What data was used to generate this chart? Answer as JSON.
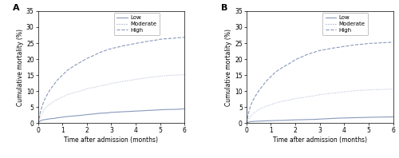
{
  "panel_A": {
    "label": "A",
    "low": {
      "x": [
        0,
        0.05,
        0.08,
        0.12,
        0.18,
        0.25,
        0.35,
        0.5,
        0.65,
        0.8,
        1.0,
        1.2,
        1.5,
        1.8,
        2.0,
        2.3,
        2.5,
        2.8,
        3.0,
        3.3,
        3.5,
        3.8,
        4.0,
        4.3,
        4.5,
        4.8,
        5.0,
        5.3,
        5.5,
        5.8,
        6.0
      ],
      "y": [
        0,
        0.4,
        0.6,
        0.8,
        1.0,
        1.1,
        1.2,
        1.4,
        1.5,
        1.7,
        1.9,
        2.1,
        2.3,
        2.5,
        2.7,
        2.9,
        3.1,
        3.2,
        3.4,
        3.5,
        3.6,
        3.7,
        3.8,
        3.9,
        4.0,
        4.1,
        4.2,
        4.3,
        4.3,
        4.4,
        4.5
      ]
    },
    "moderate": {
      "x": [
        0,
        0.05,
        0.08,
        0.12,
        0.18,
        0.25,
        0.35,
        0.5,
        0.65,
        0.8,
        1.0,
        1.2,
        1.5,
        1.8,
        2.0,
        2.3,
        2.5,
        2.8,
        3.0,
        3.3,
        3.5,
        3.8,
        4.0,
        4.3,
        4.5,
        4.8,
        5.0,
        5.3,
        5.5,
        5.8,
        6.0
      ],
      "y": [
        0,
        0.8,
        1.5,
        2.3,
        3.2,
        4.2,
        5.2,
        6.0,
        6.8,
        7.5,
        8.2,
        8.9,
        9.6,
        10.2,
        10.8,
        11.2,
        11.6,
        12.0,
        12.4,
        12.8,
        13.1,
        13.4,
        13.7,
        14.0,
        14.2,
        14.5,
        14.7,
        14.9,
        15.0,
        15.1,
        15.2
      ]
    },
    "high": {
      "x": [
        0,
        0.05,
        0.08,
        0.12,
        0.18,
        0.25,
        0.35,
        0.5,
        0.65,
        0.8,
        1.0,
        1.2,
        1.5,
        1.8,
        2.0,
        2.3,
        2.5,
        2.8,
        3.0,
        3.3,
        3.5,
        3.8,
        4.0,
        4.3,
        4.5,
        4.8,
        5.0,
        5.3,
        5.5,
        5.8,
        6.0
      ],
      "y": [
        0,
        1.5,
        2.8,
        4.0,
        5.5,
        7.0,
        8.5,
        10.5,
        12.0,
        13.5,
        15.0,
        16.5,
        18.0,
        19.3,
        20.2,
        21.2,
        22.0,
        22.8,
        23.3,
        23.8,
        24.2,
        24.6,
        24.9,
        25.3,
        25.6,
        25.9,
        26.2,
        26.4,
        26.5,
        26.7,
        26.8
      ]
    }
  },
  "panel_B": {
    "label": "B",
    "low": {
      "x": [
        0,
        0.05,
        0.08,
        0.12,
        0.18,
        0.25,
        0.35,
        0.5,
        0.65,
        0.8,
        1.0,
        1.2,
        1.5,
        1.8,
        2.0,
        2.3,
        2.5,
        2.8,
        3.0,
        3.3,
        3.5,
        3.8,
        4.0,
        4.3,
        4.5,
        4.8,
        5.0,
        5.3,
        5.5,
        5.8,
        6.0
      ],
      "y": [
        0,
        0.2,
        0.3,
        0.4,
        0.5,
        0.55,
        0.6,
        0.65,
        0.7,
        0.75,
        0.8,
        0.85,
        0.9,
        1.0,
        1.05,
        1.1,
        1.15,
        1.2,
        1.3,
        1.4,
        1.5,
        1.6,
        1.65,
        1.7,
        1.75,
        1.8,
        1.85,
        1.9,
        1.92,
        1.95,
        2.0
      ]
    },
    "moderate": {
      "x": [
        0,
        0.05,
        0.08,
        0.12,
        0.18,
        0.25,
        0.35,
        0.5,
        0.65,
        0.8,
        1.0,
        1.2,
        1.5,
        1.8,
        2.0,
        2.3,
        2.5,
        2.8,
        3.0,
        3.3,
        3.5,
        3.8,
        4.0,
        4.3,
        4.5,
        4.8,
        5.0,
        5.3,
        5.5,
        5.8,
        6.0
      ],
      "y": [
        0,
        0.5,
        1.0,
        1.6,
        2.2,
        2.8,
        3.5,
        4.2,
        4.8,
        5.3,
        5.8,
        6.3,
        6.9,
        7.3,
        7.7,
        8.0,
        8.3,
        8.6,
        8.9,
        9.2,
        9.4,
        9.6,
        9.8,
        10.0,
        10.2,
        10.3,
        10.4,
        10.5,
        10.55,
        10.6,
        10.7
      ]
    },
    "high": {
      "x": [
        0,
        0.05,
        0.08,
        0.12,
        0.18,
        0.25,
        0.35,
        0.5,
        0.65,
        0.8,
        1.0,
        1.2,
        1.5,
        1.8,
        2.0,
        2.3,
        2.5,
        2.8,
        3.0,
        3.3,
        3.5,
        3.8,
        4.0,
        4.3,
        4.5,
        4.8,
        5.0,
        5.3,
        5.5,
        5.8,
        6.0
      ],
      "y": [
        0,
        1.5,
        2.8,
        4.0,
        5.5,
        6.8,
        8.2,
        10.0,
        11.5,
        13.0,
        14.5,
        16.0,
        17.5,
        18.8,
        19.8,
        20.8,
        21.5,
        22.2,
        22.7,
        23.1,
        23.4,
        23.7,
        24.0,
        24.3,
        24.5,
        24.7,
        24.9,
        25.0,
        25.1,
        25.2,
        25.3
      ]
    }
  },
  "line_color": "#8899bb",
  "xlim": [
    0,
    6
  ],
  "ylim": [
    0,
    35
  ],
  "yticks": [
    0,
    5,
    10,
    15,
    20,
    25,
    30,
    35
  ],
  "xticks": [
    0,
    1,
    2,
    3,
    4,
    5,
    6
  ],
  "xlabel": "Time after admission (months)",
  "ylabel": "Cumulative mortality (%)",
  "legend_labels": [
    "Low",
    "Moderate",
    "High"
  ],
  "bg_color": "#ffffff"
}
